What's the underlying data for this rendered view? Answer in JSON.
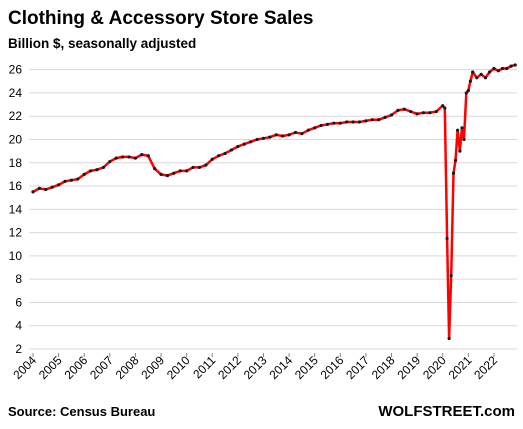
{
  "chart_data": {
    "type": "line",
    "title": "Clothing & Accessory Store Sales",
    "subtitle": "Billion $, seasonally adjusted",
    "source": "Source: Census Bureau",
    "watermark": "WOLFSTREET.com",
    "color": "#ff0000",
    "marker_color": "#1a1a1a",
    "grid": true,
    "x": [
      2004.0,
      2004.25,
      2004.5,
      2004.75,
      2005.0,
      2005.25,
      2005.5,
      2005.75,
      2006.0,
      2006.25,
      2006.5,
      2006.75,
      2007.0,
      2007.25,
      2007.5,
      2007.75,
      2008.0,
      2008.25,
      2008.5,
      2008.75,
      2009.0,
      2009.25,
      2009.5,
      2009.75,
      2010.0,
      2010.25,
      2010.5,
      2010.75,
      2011.0,
      2011.25,
      2011.5,
      2011.75,
      2012.0,
      2012.25,
      2012.5,
      2012.75,
      2013.0,
      2013.25,
      2013.5,
      2013.75,
      2014.0,
      2014.25,
      2014.5,
      2014.75,
      2015.0,
      2015.25,
      2015.5,
      2015.75,
      2016.0,
      2016.25,
      2016.5,
      2016.75,
      2017.0,
      2017.25,
      2017.5,
      2017.75,
      2018.0,
      2018.25,
      2018.5,
      2018.75,
      2019.0,
      2019.25,
      2019.5,
      2019.75,
      2020.0,
      2020.08,
      2020.17,
      2020.25,
      2020.33,
      2020.42,
      2020.5,
      2020.58,
      2020.67,
      2020.75,
      2020.83,
      2020.92,
      2021.0,
      2021.08,
      2021.17,
      2021.33,
      2021.5,
      2021.67,
      2021.83,
      2022.0,
      2022.17,
      2022.33,
      2022.5,
      2022.67,
      2022.83
    ],
    "values": [
      15.5,
      15.8,
      15.7,
      15.9,
      16.1,
      16.4,
      16.5,
      16.6,
      17.0,
      17.3,
      17.4,
      17.6,
      18.1,
      18.4,
      18.5,
      18.5,
      18.4,
      18.7,
      18.6,
      17.5,
      17.0,
      16.9,
      17.1,
      17.3,
      17.3,
      17.6,
      17.6,
      17.8,
      18.3,
      18.6,
      18.8,
      19.1,
      19.4,
      19.6,
      19.8,
      20.0,
      20.1,
      20.2,
      20.4,
      20.3,
      20.4,
      20.6,
      20.5,
      20.8,
      21.0,
      21.2,
      21.3,
      21.4,
      21.4,
      21.5,
      21.5,
      21.5,
      21.6,
      21.7,
      21.7,
      21.9,
      22.1,
      22.5,
      22.6,
      22.4,
      22.2,
      22.3,
      22.3,
      22.4,
      22.9,
      22.7,
      11.5,
      2.9,
      8.3,
      17.1,
      18.2,
      20.8,
      19.0,
      21.0,
      20.0,
      24.0,
      24.2,
      25.0,
      25.8,
      25.3,
      25.6,
      25.3,
      25.8,
      26.1,
      25.9,
      26.1,
      26.1,
      26.3,
      26.4
    ],
    "xlim": [
      2004,
      2022.9
    ],
    "xticks": [
      2004,
      2005,
      2006,
      2007,
      2008,
      2009,
      2010,
      2011,
      2012,
      2013,
      2014,
      2015,
      2016,
      2017,
      2018,
      2019,
      2020,
      2021,
      2022
    ],
    "ylim": [
      2,
      27
    ],
    "yticks": [
      2,
      4,
      6,
      8,
      10,
      12,
      14,
      16,
      18,
      20,
      22,
      24,
      26
    ]
  }
}
